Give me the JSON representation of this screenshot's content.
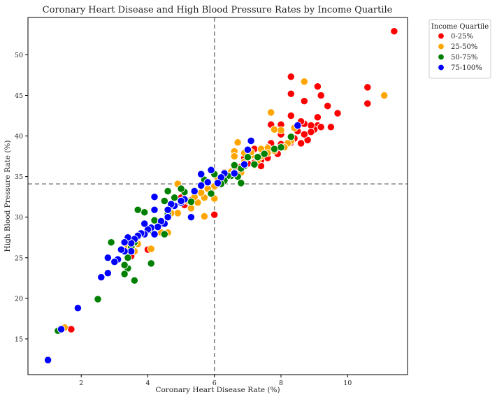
{
  "chart_data": {
    "type": "scatter",
    "title": "Coronary Heart Disease and High Blood Pressure Rates by Income Quartile",
    "xlabel": "Coronary Heart Disease Rate (%)",
    "ylabel": "High Blood Pressure Rate (%)",
    "xlim": [
      0.4,
      11.8
    ],
    "ylim": [
      10.6,
      54.6
    ],
    "xticks": [
      2,
      4,
      6,
      8,
      10
    ],
    "yticks": [
      15,
      20,
      25,
      30,
      35,
      40,
      45,
      50
    ],
    "reference_lines": {
      "vertical_x": 6.0,
      "horizontal_y": 34.1
    },
    "legend": {
      "title": "Income Quartile",
      "placement": "outside-right-top"
    },
    "series": [
      {
        "name": "0-25%",
        "color": "#ff0000",
        "points": [
          [
            11.4,
            52.9
          ],
          [
            10.6,
            46.0
          ],
          [
            10.6,
            44.0
          ],
          [
            9.7,
            42.8
          ],
          [
            9.5,
            41.1
          ],
          [
            9.4,
            43.7
          ],
          [
            9.2,
            45.0
          ],
          [
            9.1,
            46.1
          ],
          [
            9.1,
            42.3
          ],
          [
            9.1,
            41.3
          ],
          [
            9.2,
            41.1
          ],
          [
            9.0,
            40.8
          ],
          [
            8.9,
            41.3
          ],
          [
            8.9,
            40.5
          ],
          [
            8.8,
            39.5
          ],
          [
            8.7,
            40.2
          ],
          [
            8.7,
            41.5
          ],
          [
            8.7,
            44.3
          ],
          [
            8.6,
            39.1
          ],
          [
            8.6,
            41.8
          ],
          [
            8.5,
            40.6
          ],
          [
            8.4,
            41.0
          ],
          [
            8.4,
            39.7
          ],
          [
            8.3,
            47.3
          ],
          [
            8.3,
            45.2
          ],
          [
            8.3,
            42.5
          ],
          [
            8.3,
            39.2
          ],
          [
            8.0,
            41.4
          ],
          [
            8.0,
            40.2
          ],
          [
            8.0,
            39.0
          ],
          [
            7.9,
            37.8
          ],
          [
            7.8,
            38.2
          ],
          [
            7.7,
            41.4
          ],
          [
            7.7,
            39.1
          ],
          [
            7.6,
            38.6
          ],
          [
            7.6,
            37.3
          ],
          [
            7.4,
            37.0
          ],
          [
            7.4,
            36.3
          ],
          [
            7.2,
            38.4
          ],
          [
            7.2,
            36.7
          ],
          [
            7.0,
            36.6
          ],
          [
            6.9,
            37.3
          ],
          [
            6.8,
            36.2
          ],
          [
            6.7,
            35.5
          ],
          [
            6.6,
            35.8
          ],
          [
            6.5,
            35.2
          ],
          [
            6.3,
            35.5
          ],
          [
            6.0,
            30.3
          ],
          [
            5.1,
            31.5
          ],
          [
            5.0,
            32.4
          ],
          [
            5.3,
            32.1
          ],
          [
            4.0,
            26.0
          ],
          [
            3.5,
            25.2
          ],
          [
            1.7,
            16.2
          ]
        ]
      },
      {
        "name": "25-50%",
        "color": "#ffa500",
        "points": [
          [
            11.1,
            45.0
          ],
          [
            8.7,
            46.7
          ],
          [
            8.4,
            41.0
          ],
          [
            8.3,
            39.4
          ],
          [
            8.2,
            39.1
          ],
          [
            8.1,
            38.6
          ],
          [
            8.0,
            40.7
          ],
          [
            7.8,
            38.2
          ],
          [
            7.8,
            40.8
          ],
          [
            7.7,
            42.9
          ],
          [
            7.6,
            38.5
          ],
          [
            7.6,
            37.9
          ],
          [
            7.4,
            38.4
          ],
          [
            7.4,
            37.5
          ],
          [
            7.3,
            37.0
          ],
          [
            7.2,
            36.4
          ],
          [
            7.1,
            37.6
          ],
          [
            7.1,
            38.0
          ],
          [
            6.9,
            37.9
          ],
          [
            6.9,
            36.8
          ],
          [
            6.8,
            35.5
          ],
          [
            6.6,
            38.1
          ],
          [
            6.6,
            37.5
          ],
          [
            6.7,
            39.2
          ],
          [
            6.5,
            35.6
          ],
          [
            6.4,
            35.1
          ],
          [
            6.3,
            35.4
          ],
          [
            6.1,
            34.6
          ],
          [
            6.0,
            33.8
          ],
          [
            6.0,
            32.3
          ],
          [
            5.9,
            33.1
          ],
          [
            5.8,
            33.5
          ],
          [
            5.7,
            32.4
          ],
          [
            5.6,
            33.0
          ],
          [
            5.7,
            30.1
          ],
          [
            5.5,
            31.8
          ],
          [
            5.4,
            32.5
          ],
          [
            5.2,
            32.0
          ],
          [
            5.3,
            31.1
          ],
          [
            4.9,
            34.1
          ],
          [
            4.9,
            30.5
          ],
          [
            4.7,
            30.5
          ],
          [
            4.6,
            28.1
          ],
          [
            4.4,
            28.1
          ],
          [
            4.1,
            26.1
          ],
          [
            3.7,
            26.7
          ],
          [
            3.6,
            25.8
          ],
          [
            3.4,
            26.4
          ],
          [
            1.5,
            16.4
          ]
        ]
      },
      {
        "name": "50-75%",
        "color": "#008000",
        "points": [
          [
            8.3,
            39.9
          ],
          [
            8.0,
            38.6
          ],
          [
            7.8,
            38.4
          ],
          [
            7.5,
            37.8
          ],
          [
            7.3,
            37.4
          ],
          [
            7.2,
            36.5
          ],
          [
            7.0,
            37.4
          ],
          [
            6.9,
            36.3
          ],
          [
            6.8,
            36.0
          ],
          [
            6.8,
            34.2
          ],
          [
            6.7,
            35.0
          ],
          [
            6.6,
            36.4
          ],
          [
            6.6,
            35.5
          ],
          [
            6.5,
            35.1
          ],
          [
            6.4,
            35.1
          ],
          [
            6.3,
            34.5
          ],
          [
            6.2,
            34.1
          ],
          [
            6.0,
            35.3
          ],
          [
            5.9,
            32.9
          ],
          [
            5.7,
            34.6
          ],
          [
            5.4,
            33.3
          ],
          [
            5.3,
            31.9
          ],
          [
            5.1,
            33.1
          ],
          [
            5.0,
            33.5
          ],
          [
            4.8,
            32.4
          ],
          [
            4.7,
            31.4
          ],
          [
            4.6,
            30.4
          ],
          [
            4.5,
            32.0
          ],
          [
            4.6,
            33.2
          ],
          [
            4.5,
            27.9
          ],
          [
            4.3,
            29.1
          ],
          [
            4.2,
            29.6
          ],
          [
            4.1,
            28.4
          ],
          [
            3.9,
            30.6
          ],
          [
            3.7,
            30.9
          ],
          [
            3.7,
            27.6
          ],
          [
            3.6,
            26.9
          ],
          [
            3.6,
            22.2
          ],
          [
            3.5,
            26.3
          ],
          [
            3.4,
            25.0
          ],
          [
            3.4,
            23.7
          ],
          [
            3.3,
            24.1
          ],
          [
            3.3,
            23.0
          ],
          [
            3.0,
            24.5
          ],
          [
            2.9,
            26.9
          ],
          [
            2.8,
            23.1
          ],
          [
            2.5,
            19.9
          ],
          [
            1.3,
            16.0
          ],
          [
            4.1,
            24.3
          ]
        ]
      },
      {
        "name": "75-100%",
        "color": "#0000ff",
        "points": [
          [
            8.5,
            41.3
          ],
          [
            7.1,
            39.4
          ],
          [
            7.0,
            38.3
          ],
          [
            6.9,
            36.5
          ],
          [
            6.6,
            35.4
          ],
          [
            6.3,
            35.4
          ],
          [
            6.2,
            34.9
          ],
          [
            6.1,
            34.2
          ],
          [
            5.9,
            35.8
          ],
          [
            5.8,
            34.3
          ],
          [
            5.6,
            35.3
          ],
          [
            5.6,
            33.9
          ],
          [
            5.4,
            33.2
          ],
          [
            5.3,
            30.0
          ],
          [
            5.1,
            32.2
          ],
          [
            5.0,
            31.8
          ],
          [
            5.0,
            32.0
          ],
          [
            4.8,
            31.4
          ],
          [
            4.7,
            31.6
          ],
          [
            4.6,
            30.9
          ],
          [
            4.6,
            30.0
          ],
          [
            4.5,
            29.2
          ],
          [
            4.4,
            29.5
          ],
          [
            4.3,
            28.8
          ],
          [
            4.2,
            27.9
          ],
          [
            4.2,
            30.9
          ],
          [
            4.2,
            32.5
          ],
          [
            4.1,
            28.7
          ],
          [
            4.0,
            28.5
          ],
          [
            3.9,
            29.2
          ],
          [
            3.9,
            27.9
          ],
          [
            3.8,
            28.0
          ],
          [
            3.7,
            27.7
          ],
          [
            3.6,
            27.3
          ],
          [
            3.5,
            26.8
          ],
          [
            3.5,
            25.8
          ],
          [
            3.4,
            27.5
          ],
          [
            3.3,
            26.9
          ],
          [
            3.3,
            25.8
          ],
          [
            3.2,
            26.0
          ],
          [
            3.1,
            24.8
          ],
          [
            3.0,
            24.5
          ],
          [
            2.8,
            25.0
          ],
          [
            2.8,
            23.1
          ],
          [
            2.6,
            22.6
          ],
          [
            1.9,
            18.8
          ],
          [
            1.4,
            16.2
          ],
          [
            1.0,
            12.4
          ]
        ]
      }
    ]
  }
}
